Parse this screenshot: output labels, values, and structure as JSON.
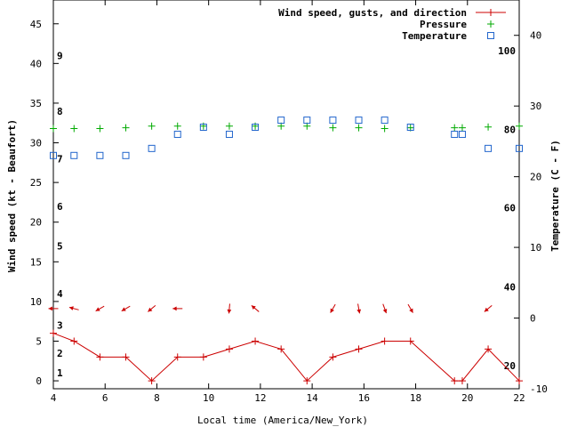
{
  "chart_data": {
    "type": "line",
    "xlabel": "Local time (America/New_York)",
    "ylabel": "Wind speed (kt - Beaufort)",
    "y2label": "Temperature (C - F)",
    "xlim": [
      4,
      22
    ],
    "ylim": [
      -1,
      48
    ],
    "y2lim": [
      -10,
      45
    ],
    "x_ticks": [
      4,
      6,
      8,
      10,
      12,
      14,
      16,
      18,
      20,
      22
    ],
    "y_ticks": [
      0,
      5,
      10,
      15,
      20,
      25,
      30,
      35,
      40,
      45
    ],
    "y2_ticks": [
      -10,
      0,
      10,
      20,
      30,
      40
    ],
    "fahrenheit_ticks": [
      {
        "label": "20",
        "celsius": -6.7
      },
      {
        "label": "40",
        "celsius": 4.4
      },
      {
        "label": "60",
        "celsius": 15.6
      },
      {
        "label": "80",
        "celsius": 26.7
      },
      {
        "label": "100",
        "celsius": 37.8
      }
    ],
    "beaufort_ticks": [
      {
        "label": "1",
        "kt": 1
      },
      {
        "label": "2",
        "kt": 3.5
      },
      {
        "label": "3",
        "kt": 7
      },
      {
        "label": "4",
        "kt": 11
      },
      {
        "label": "5",
        "kt": 17
      },
      {
        "label": "6",
        "kt": 22
      },
      {
        "label": "7",
        "kt": 28
      },
      {
        "label": "8",
        "kt": 34
      },
      {
        "label": "9",
        "kt": 41
      }
    ],
    "legend": {
      "position": "top-right",
      "entries": [
        "Wind speed, gusts, and direction",
        "Pressure",
        "Temperature"
      ]
    },
    "series": [
      {
        "name": "Wind speed, gusts, and direction",
        "color": "#cc0000",
        "x": [
          4,
          4.8,
          5.8,
          6.8,
          7.8,
          8.8,
          9.8,
          10.8,
          11.8,
          12.8,
          13.8,
          14.8,
          15.8,
          16.8,
          17.8,
          19.5,
          19.8,
          20.8,
          22
        ],
        "y": [
          6,
          5,
          3,
          3,
          0,
          3,
          3,
          4,
          5,
          4,
          0,
          3,
          4,
          5,
          5,
          0,
          0,
          4,
          0
        ]
      },
      {
        "name": "Wind direction arrows",
        "color": "#cc0000",
        "x": [
          4,
          4.8,
          5.8,
          6.8,
          7.8,
          8.8,
          10.8,
          11.8,
          14.8,
          15.8,
          16.8,
          17.8,
          20.8
        ],
        "angle_deg": [
          0,
          15,
          330,
          330,
          320,
          0,
          275,
          40,
          300,
          260,
          250,
          240,
          320
        ]
      },
      {
        "name": "Pressure",
        "color": "#00aa00",
        "x": [
          4,
          4.8,
          5.8,
          6.8,
          7.8,
          8.8,
          9.8,
          10.8,
          11.8,
          12.8,
          13.8,
          14.8,
          15.8,
          16.8,
          17.8,
          19.5,
          19.8,
          20.8,
          22
        ],
        "y": [
          31.8,
          31.8,
          31.8,
          31.9,
          32.1,
          32.1,
          32.1,
          32.1,
          32.1,
          32.1,
          32.1,
          31.9,
          31.9,
          31.8,
          31.9,
          31.9,
          31.9,
          32.0,
          32.1
        ]
      },
      {
        "name": "Temperature",
        "color": "#2266cc",
        "x": [
          4,
          4.8,
          5.8,
          6.8,
          7.8,
          8.8,
          9.8,
          10.8,
          11.8,
          12.8,
          13.8,
          14.8,
          15.8,
          16.8,
          17.8,
          19.5,
          19.8,
          20.8,
          22
        ],
        "y": [
          23.0,
          23.0,
          23.0,
          23.0,
          24.0,
          26.0,
          27.0,
          26.0,
          27.0,
          28.0,
          28.0,
          28.0,
          28.0,
          28.0,
          27.0,
          26.0,
          26.0,
          24.0,
          24.0
        ]
      }
    ]
  }
}
